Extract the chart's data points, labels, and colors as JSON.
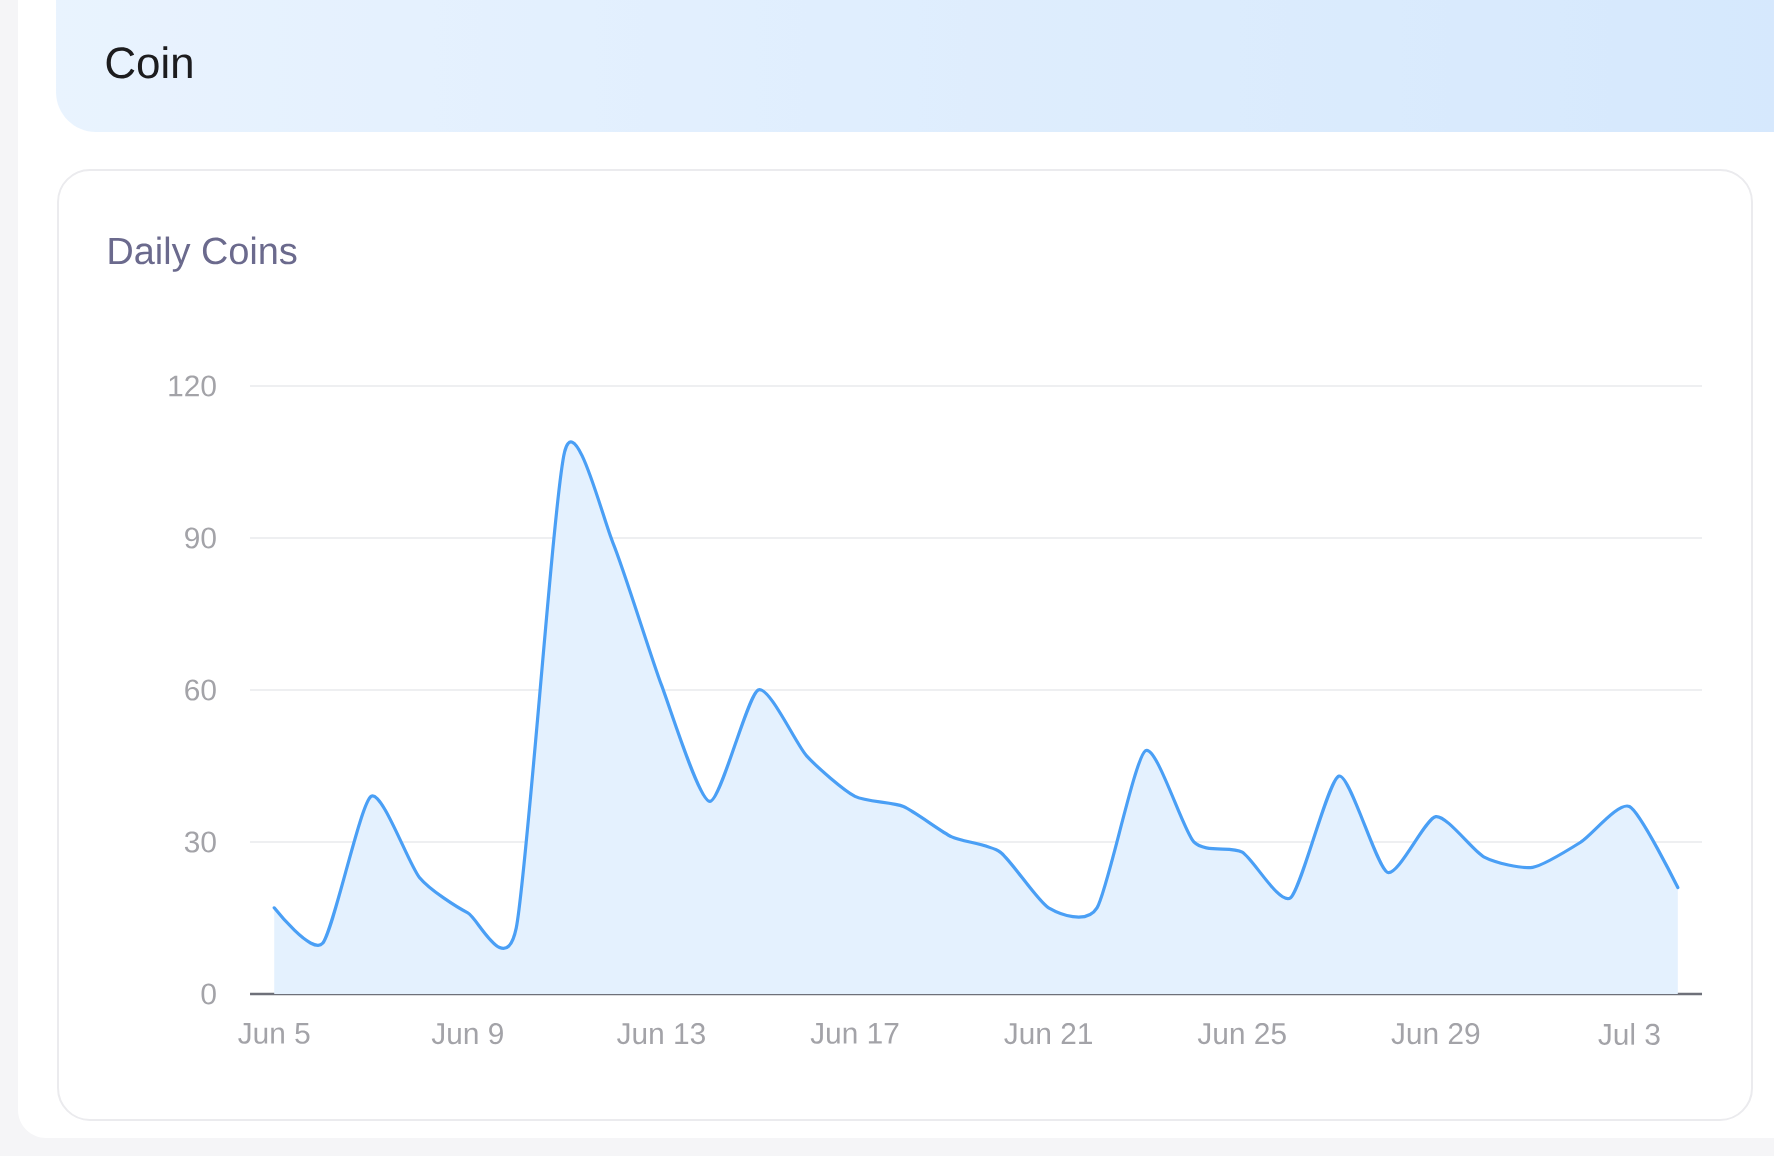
{
  "chart_data": {
    "type": "area",
    "title": "Coin",
    "subtitle": "Daily Coins",
    "categories": [
      "Jun 5",
      null,
      null,
      null,
      "Jun 9",
      null,
      null,
      null,
      "Jun 13",
      null,
      null,
      null,
      "Jun 17",
      null,
      null,
      null,
      "Jun 21",
      null,
      null,
      null,
      "Jun 25",
      null,
      null,
      null,
      "Jun 29",
      null,
      null,
      null,
      "Jul 3",
      null
    ],
    "values": [
      17,
      10,
      39,
      23,
      16,
      13,
      107,
      89,
      61,
      38,
      60,
      47,
      39,
      37,
      31,
      28,
      17,
      17,
      48,
      30,
      28,
      19,
      43,
      24,
      35,
      27,
      25,
      30,
      37,
      21
    ],
    "color": "#4a9ff5",
    "ylim": [
      0,
      120
    ],
    "yticks": [
      0,
      30,
      60,
      90,
      120
    ],
    "grid": "y"
  }
}
